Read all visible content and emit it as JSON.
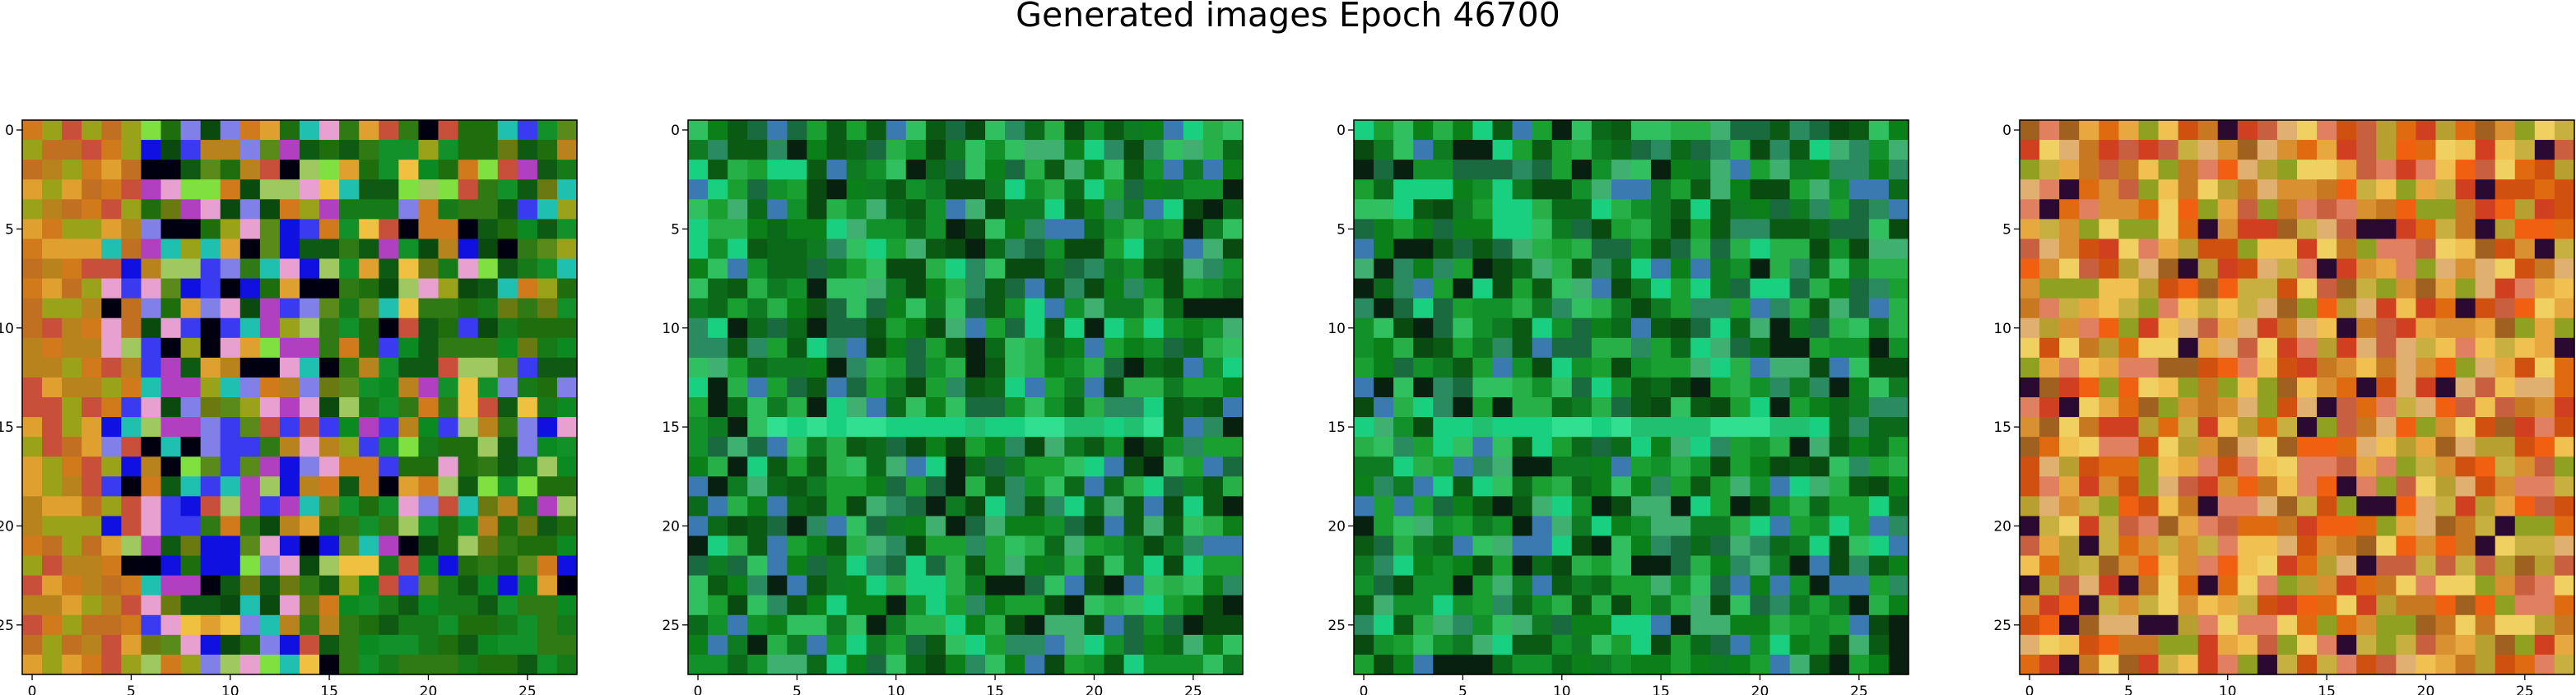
{
  "figure": {
    "title": "Generated images Epoch 46700"
  },
  "chart_data": [
    {
      "type": "heatmap",
      "title": "",
      "xlabel": "",
      "ylabel": "",
      "xlim": [
        -0.5,
        27.5
      ],
      "ylim": [
        27.5,
        -0.5
      ],
      "xticks": [
        0,
        5,
        10,
        15,
        20,
        25
      ],
      "yticks": [
        0,
        5,
        10,
        15,
        20,
        25
      ],
      "grid": false,
      "palette": [
        "#c8503a",
        "#b8821c",
        "#9aa21a",
        "#5a8a1a",
        "#2f7a14",
        "#1e6e0e",
        "#0e5a12",
        "#0a4a0e",
        "#6a7a10",
        "#d07a1c",
        "#e0a030",
        "#f0c040",
        "#1010e0",
        "#3a3af0",
        "#8080e8",
        "#b040c0",
        "#20c0b0",
        "#80e040",
        "#000010",
        "#e8a0d0",
        "#a0c860"
      ],
      "dominant_colors": [
        "#1e6e0e",
        "#0a8a20",
        "#d07a1c",
        "#2020e0"
      ]
    },
    {
      "type": "heatmap",
      "title": "",
      "xlabel": "",
      "ylabel": "",
      "xlim": [
        -0.5,
        27.5
      ],
      "ylim": [
        27.5,
        -0.5
      ],
      "xticks": [
        0,
        5,
        10,
        15,
        20,
        25
      ],
      "yticks": [
        0,
        5,
        10,
        15,
        20,
        25
      ],
      "grid": false,
      "palette": [
        "#0a6a1a",
        "#0e7a22",
        "#12902a",
        "#1aa030",
        "#0a5a14",
        "#084a10",
        "#28b048",
        "#30c060",
        "#18d080",
        "#2a8a60",
        "#3a7ab0",
        "#082010",
        "#1a6a40",
        "#40b070",
        "#0c8018"
      ],
      "dominant_colors": [
        "#0e7a22",
        "#18d080",
        "#082010"
      ]
    },
    {
      "type": "heatmap",
      "title": "",
      "xlabel": "",
      "ylabel": "",
      "xlim": [
        -0.5,
        27.5
      ],
      "ylim": [
        27.5,
        -0.5
      ],
      "xticks": [
        0,
        5,
        10,
        15,
        20,
        25
      ],
      "yticks": [
        0,
        5,
        10,
        15,
        20,
        25
      ],
      "grid": false,
      "palette": [
        "#0a6a1a",
        "#0e7a22",
        "#12902a",
        "#1aa030",
        "#0a5a14",
        "#084a10",
        "#28b048",
        "#30c060",
        "#18d080",
        "#2a8a60",
        "#3a7ab0",
        "#082010",
        "#1a6a40",
        "#40b070",
        "#0c8018"
      ],
      "dominant_colors": [
        "#0e7a22",
        "#18d080",
        "#082010"
      ]
    },
    {
      "type": "heatmap",
      "title": "",
      "xlabel": "",
      "ylabel": "",
      "xlim": [
        -0.5,
        27.5
      ],
      "ylim": [
        27.5,
        -0.5
      ],
      "xticks": [
        0,
        5,
        10,
        15,
        20,
        25
      ],
      "yticks": [
        0,
        5,
        10,
        15,
        20,
        25
      ],
      "grid": false,
      "palette": [
        "#d89030",
        "#e8a840",
        "#c87820",
        "#e06a10",
        "#d05010",
        "#f0c050",
        "#b8a030",
        "#c8b040",
        "#e08060",
        "#d04020",
        "#f0d060",
        "#a06020",
        "#e0b070",
        "#c86040",
        "#2a0a30",
        "#f06010",
        "#90a020"
      ],
      "dominant_colors": [
        "#d89030",
        "#e06a10",
        "#c8b040"
      ]
    }
  ]
}
